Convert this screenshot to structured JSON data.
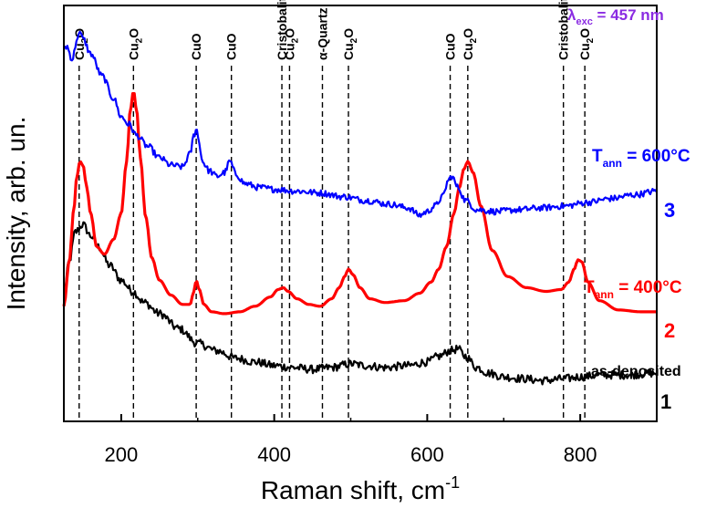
{
  "chart_data": {
    "type": "line",
    "xlabel_main": "Raman shift, cm",
    "xlabel_sup": "-1",
    "ylabel": "Intensity, arb. un.",
    "xlim": [
      125,
      900
    ],
    "x_ticks": [
      200,
      400,
      600,
      800
    ],
    "excitation": {
      "main": "λ",
      "sub": "exc",
      "rest": " = 457 nm",
      "color": "#8a2be2"
    },
    "peak_markers": [
      {
        "x": 145,
        "parts": [
          [
            "Cu",
            ""
          ],
          [
            "2",
            "sub"
          ],
          [
            "O",
            ""
          ]
        ]
      },
      {
        "x": 216,
        "parts": [
          [
            "Cu",
            ""
          ],
          [
            "2",
            "sub"
          ],
          [
            "O",
            ""
          ]
        ]
      },
      {
        "x": 298,
        "parts": [
          [
            "CuO",
            ""
          ]
        ]
      },
      {
        "x": 344,
        "parts": [
          [
            "CuO",
            ""
          ]
        ]
      },
      {
        "x": 410,
        "parts": [
          [
            "Cristobalite",
            ""
          ]
        ]
      },
      {
        "x": 420,
        "parts": [
          [
            "Cu",
            ""
          ],
          [
            "2",
            "sub"
          ],
          [
            "O",
            ""
          ]
        ]
      },
      {
        "x": 463,
        "parts": [
          [
            "α-Quartz",
            ""
          ]
        ]
      },
      {
        "x": 497,
        "parts": [
          [
            "Cu",
            ""
          ],
          [
            "2",
            "sub"
          ],
          [
            "O",
            ""
          ]
        ]
      },
      {
        "x": 630,
        "parts": [
          [
            "CuO",
            ""
          ]
        ]
      },
      {
        "x": 653,
        "parts": [
          [
            "Cu",
            ""
          ],
          [
            "2",
            "sub"
          ],
          [
            "O",
            ""
          ]
        ]
      },
      {
        "x": 778,
        "parts": [
          [
            "Cristobalite",
            ""
          ]
        ]
      },
      {
        "x": 806,
        "parts": [
          [
            "Cu",
            ""
          ],
          [
            "2",
            "sub"
          ],
          [
            "O",
            ""
          ]
        ]
      }
    ],
    "series": [
      {
        "name": "as-deposited",
        "number": "1",
        "color": "#000000",
        "noise": 0.22,
        "x": [
          125,
          132,
          140,
          150,
          160,
          170,
          185,
          200,
          215,
          230,
          250,
          275,
          300,
          325,
          350,
          375,
          400,
          425,
          450,
          475,
          500,
          520,
          545,
          575,
          600,
          615,
          630,
          640,
          650,
          665,
          680,
          700,
          725,
          750,
          780,
          800,
          830,
          860,
          900
        ],
        "y": [
          3.4,
          4.3,
          5.1,
          5.3,
          5.0,
          4.7,
          4.2,
          3.8,
          3.5,
          3.2,
          2.9,
          2.5,
          2.1,
          1.9,
          1.7,
          1.6,
          1.5,
          1.45,
          1.4,
          1.45,
          1.55,
          1.5,
          1.45,
          1.5,
          1.6,
          1.75,
          1.9,
          1.95,
          1.75,
          1.45,
          1.3,
          1.2,
          1.15,
          1.1,
          1.15,
          1.2,
          1.25,
          1.25,
          1.3
        ]
      },
      {
        "name": "T_ann = 400°C",
        "number": "2",
        "color": "#ff0000",
        "noise": 0.0,
        "x": [
          125,
          132,
          138,
          142,
          146,
          150,
          155,
          160,
          168,
          178,
          190,
          200,
          207,
          212,
          216,
          220,
          225,
          232,
          240,
          250,
          265,
          280,
          290,
          295,
          298,
          302,
          308,
          318,
          335,
          355,
          375,
          395,
          405,
          412,
          418,
          430,
          445,
          460,
          475,
          485,
          492,
          497,
          503,
          512,
          525,
          545,
          570,
          590,
          605,
          615,
          625,
          635,
          642,
          648,
          653,
          660,
          670,
          685,
          705,
          730,
          755,
          775,
          785,
          792,
          797,
          802,
          810,
          825,
          850,
          880,
          900
        ],
        "y": [
          3.1,
          4.3,
          5.7,
          6.6,
          7.0,
          6.9,
          6.3,
          5.6,
          4.7,
          4.5,
          4.9,
          5.6,
          7.0,
          8.4,
          8.9,
          8.4,
          7.1,
          5.5,
          4.4,
          3.8,
          3.4,
          3.15,
          3.15,
          3.5,
          3.8,
          3.55,
          3.15,
          2.95,
          2.9,
          2.95,
          3.1,
          3.35,
          3.55,
          3.6,
          3.5,
          3.3,
          3.15,
          3.1,
          3.3,
          3.6,
          3.9,
          4.1,
          3.95,
          3.6,
          3.3,
          3.2,
          3.25,
          3.45,
          3.75,
          4.1,
          4.7,
          5.6,
          6.3,
          6.8,
          7.0,
          6.7,
          5.8,
          4.6,
          3.9,
          3.6,
          3.5,
          3.55,
          3.75,
          4.1,
          4.35,
          4.3,
          3.75,
          3.25,
          3.0,
          2.95,
          2.95
        ]
      },
      {
        "name": "T_ann = 600°C",
        "number": "3",
        "color": "#0000ff",
        "noise": 0.17,
        "x": [
          125,
          130,
          135,
          140,
          145,
          150,
          160,
          175,
          190,
          200,
          210,
          220,
          235,
          250,
          265,
          280,
          290,
          295,
          298,
          302,
          306,
          315,
          325,
          335,
          342,
          350,
          362,
          380,
          400,
          430,
          460,
          490,
          520,
          550,
          575,
          590,
          600,
          610,
          620,
          628,
          632,
          640,
          650,
          665,
          690,
          720,
          750,
          780,
          810,
          840,
          870,
          900
        ],
        "y": [
          10.0,
          10.1,
          9.7,
          10.1,
          10.5,
          10.3,
          9.9,
          9.3,
          8.7,
          8.2,
          8.0,
          7.7,
          7.4,
          7.1,
          6.9,
          6.85,
          7.2,
          7.7,
          7.9,
          7.5,
          7.0,
          6.75,
          6.6,
          6.7,
          7.0,
          6.65,
          6.4,
          6.3,
          6.25,
          6.2,
          6.15,
          6.05,
          5.95,
          5.85,
          5.75,
          5.55,
          5.65,
          5.8,
          6.05,
          6.5,
          6.6,
          6.3,
          5.95,
          5.7,
          5.65,
          5.7,
          5.75,
          5.8,
          5.9,
          6.0,
          6.1,
          6.2
        ]
      }
    ],
    "series_labels": {
      "s1": {
        "text": "as-deposited"
      },
      "s2": {
        "main": "T",
        "sub": "ann",
        "rest": " = 400°C"
      },
      "s3": {
        "main": "T",
        "sub": "ann",
        "rest": " = 600°C"
      }
    }
  }
}
